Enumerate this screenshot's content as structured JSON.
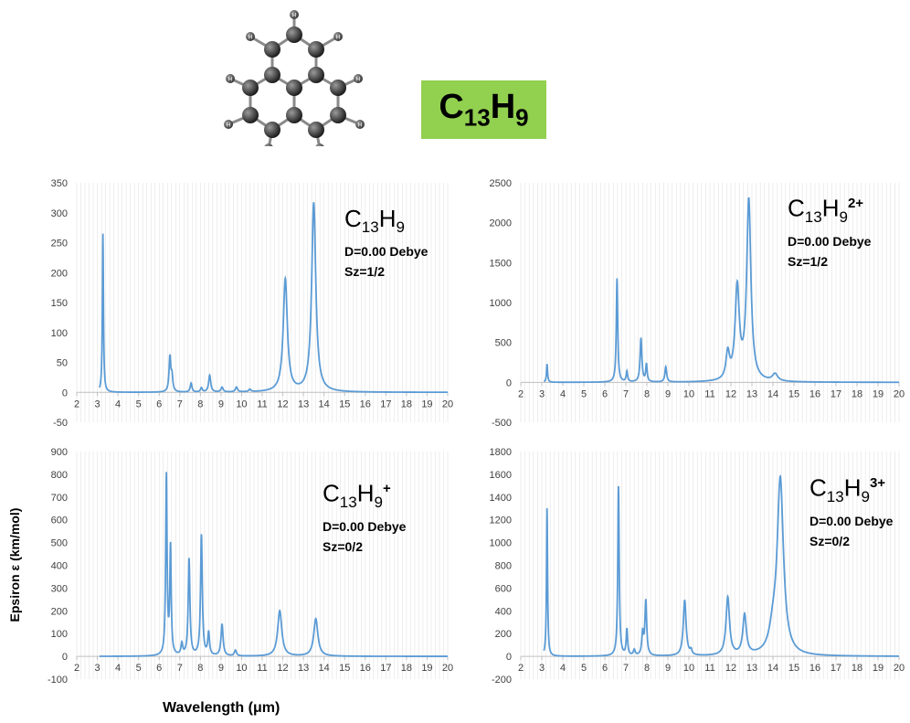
{
  "header": {
    "formula": {
      "base": "C",
      "sub1": "13",
      "base2": "H",
      "sub2": "9"
    },
    "box_color": "#92d050",
    "molecule_atom_label": "H"
  },
  "axis_labels": {
    "y": "Epsiron ε  (km/mol)",
    "x": "Wavelength (μm)"
  },
  "series_color": "#5b9bd5",
  "chart_data": [
    {
      "type": "line",
      "species": {
        "c": "C",
        "n13": "13",
        "h": "H",
        "n9": "9",
        "charge": ""
      },
      "dipole": "D=0.00 Debye",
      "spin": "Sz=1/2",
      "xlim": [
        2,
        20
      ],
      "ylim": [
        -50,
        350
      ],
      "xticks": [
        2,
        3,
        4,
        5,
        6,
        7,
        8,
        9,
        10,
        11,
        12,
        13,
        14,
        15,
        16,
        17,
        18,
        19,
        20
      ],
      "yticks": [
        -50,
        0,
        50,
        100,
        150,
        200,
        250,
        300,
        350
      ],
      "x_start": 3.1,
      "peaks": [
        [
          3.27,
          265,
          0.03
        ],
        [
          6.52,
          58,
          0.05
        ],
        [
          6.62,
          25,
          0.05
        ],
        [
          7.55,
          15,
          0.05
        ],
        [
          8.05,
          7,
          0.05
        ],
        [
          8.45,
          28,
          0.06
        ],
        [
          9.05,
          8,
          0.06
        ],
        [
          9.75,
          8,
          0.06
        ],
        [
          10.4,
          4,
          0.06
        ],
        [
          12.12,
          188,
          0.12
        ],
        [
          13.5,
          316,
          0.12
        ]
      ]
    },
    {
      "type": "line",
      "species": {
        "c": "C",
        "n13": "13",
        "h": "H",
        "n9": "9",
        "charge": "2+"
      },
      "dipole": "D=0.00 Debye",
      "spin": "Sz=1/2",
      "xlim": [
        2,
        20
      ],
      "ylim": [
        -500,
        2500
      ],
      "xticks": [
        2,
        3,
        4,
        5,
        6,
        7,
        8,
        9,
        10,
        11,
        12,
        13,
        14,
        15,
        16,
        17,
        18,
        19,
        20
      ],
      "yticks": [
        -500,
        0,
        500,
        1000,
        1500,
        2000,
        2500
      ],
      "x_start": 3.1,
      "peaks": [
        [
          3.25,
          230,
          0.03
        ],
        [
          6.58,
          1300,
          0.04
        ],
        [
          7.05,
          130,
          0.04
        ],
        [
          7.72,
          550,
          0.05
        ],
        [
          7.98,
          220,
          0.04
        ],
        [
          8.9,
          190,
          0.05
        ],
        [
          11.85,
          330,
          0.1
        ],
        [
          12.3,
          1150,
          0.12
        ],
        [
          12.85,
          2260,
          0.12
        ],
        [
          14.1,
          90,
          0.15
        ]
      ]
    },
    {
      "type": "line",
      "species": {
        "c": "C",
        "n13": "13",
        "h": "H",
        "n9": "9",
        "charge": "+"
      },
      "dipole": "D=0.00 Debye",
      "spin": "Sz=0/2",
      "xlim": [
        2,
        20
      ],
      "ylim": [
        -100,
        900
      ],
      "xticks": [
        2,
        3,
        4,
        5,
        6,
        7,
        8,
        9,
        10,
        11,
        12,
        13,
        14,
        15,
        16,
        17,
        18,
        19,
        20
      ],
      "yticks": [
        -100,
        0,
        100,
        200,
        300,
        400,
        500,
        600,
        700,
        800,
        900
      ],
      "x_start": 3.1,
      "peaks": [
        [
          6.35,
          790,
          0.04
        ],
        [
          6.55,
          470,
          0.04
        ],
        [
          7.1,
          50,
          0.05
        ],
        [
          7.45,
          425,
          0.05
        ],
        [
          8.05,
          530,
          0.05
        ],
        [
          8.4,
          100,
          0.05
        ],
        [
          9.05,
          140,
          0.06
        ],
        [
          9.7,
          25,
          0.06
        ],
        [
          11.85,
          200,
          0.12
        ],
        [
          13.6,
          165,
          0.12
        ]
      ]
    },
    {
      "type": "line",
      "species": {
        "c": "C",
        "n13": "13",
        "h": "H",
        "n9": "9",
        "charge": "3+"
      },
      "dipole": "D=0.00 Debye",
      "spin": "Sz=0/2",
      "xlim": [
        2,
        20
      ],
      "ylim": [
        -200,
        1800
      ],
      "xticks": [
        2,
        3,
        4,
        5,
        6,
        7,
        8,
        9,
        10,
        11,
        12,
        13,
        14,
        15,
        16,
        17,
        18,
        19,
        20
      ],
      "yticks": [
        -200,
        0,
        200,
        400,
        600,
        800,
        1000,
        1200,
        1400,
        1600,
        1800
      ],
      "x_start": 3.1,
      "peaks": [
        [
          3.25,
          1300,
          0.03
        ],
        [
          6.65,
          1490,
          0.04
        ],
        [
          7.05,
          230,
          0.04
        ],
        [
          7.4,
          50,
          0.05
        ],
        [
          7.8,
          190,
          0.05
        ],
        [
          7.95,
          480,
          0.05
        ],
        [
          9.8,
          490,
          0.08
        ],
        [
          10.1,
          40,
          0.05
        ],
        [
          11.85,
          510,
          0.1
        ],
        [
          12.65,
          350,
          0.1
        ],
        [
          14.35,
          1540,
          0.18
        ],
        [
          14.0,
          160,
          0.2
        ]
      ]
    }
  ]
}
